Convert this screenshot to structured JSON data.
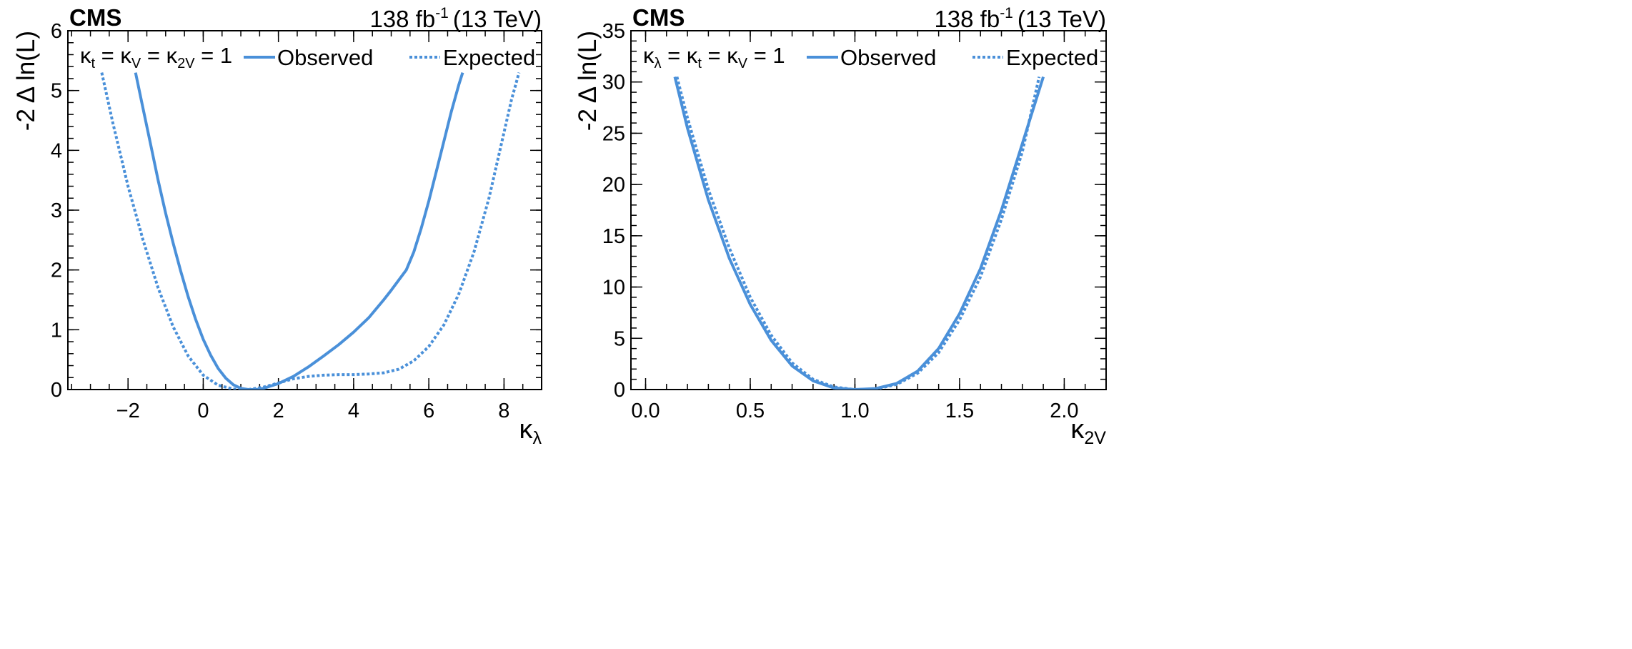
{
  "colors": {
    "line": "#4a90d9",
    "axis": "#000000",
    "background": "#ffffff"
  },
  "chart_data": [
    {
      "type": "line",
      "experiment": "CMS",
      "lumi": {
        "value": "138 fb",
        "exponent": "-1",
        "energy": "(13 TeV)"
      },
      "xlabel": {
        "main": "κ",
        "sub": "λ"
      },
      "ylabel": "-2 Δ ln(L)",
      "xlim": [
        -3.6,
        9.0
      ],
      "ylim": [
        0,
        6
      ],
      "x_ticks": [
        -2,
        0,
        2,
        4,
        6,
        8
      ],
      "x_tick_labels": [
        "−2",
        "0",
        "2",
        "4",
        "6",
        "8"
      ],
      "y_ticks": [
        0,
        1,
        2,
        3,
        4,
        5,
        6
      ],
      "y_tick_labels": [
        "0",
        "1",
        "2",
        "3",
        "4",
        "5",
        "6"
      ],
      "legend": {
        "condition": [
          {
            "t": "κ",
            "s": "t"
          },
          {
            "t": " = κ",
            "s": "V"
          },
          {
            "t": " = κ",
            "s": "2V"
          },
          {
            "t": " = 1",
            "s": ""
          }
        ],
        "observed": "Observed",
        "expected": "Expected",
        "position": "top"
      },
      "series": [
        {
          "name": "Observed",
          "style": "solid",
          "x": [
            -1.8,
            -1.6,
            -1.4,
            -1.2,
            -1.0,
            -0.8,
            -0.6,
            -0.4,
            -0.2,
            0.0,
            0.2,
            0.4,
            0.6,
            0.8,
            1.0,
            1.2,
            1.4,
            1.6,
            1.8,
            2.0,
            2.4,
            2.8,
            3.2,
            3.6,
            4.0,
            4.4,
            4.8,
            5.0,
            5.2,
            5.4,
            5.6,
            5.8,
            6.0,
            6.2,
            6.4,
            6.6,
            6.8,
            6.9
          ],
          "y": [
            5.3,
            4.7,
            4.1,
            3.5,
            2.95,
            2.45,
            1.98,
            1.55,
            1.17,
            0.84,
            0.57,
            0.35,
            0.19,
            0.08,
            0.02,
            0.0,
            0.0,
            0.02,
            0.06,
            0.1,
            0.22,
            0.38,
            0.56,
            0.75,
            0.96,
            1.2,
            1.5,
            1.66,
            1.83,
            2.0,
            2.3,
            2.7,
            3.15,
            3.65,
            4.15,
            4.65,
            5.1,
            5.3
          ]
        },
        {
          "name": "Expected",
          "style": "dotted",
          "x": [
            -2.7,
            -2.4,
            -2.0,
            -1.6,
            -1.2,
            -0.8,
            -0.4,
            0.0,
            0.4,
            0.8,
            1.2,
            1.6,
            2.0,
            2.4,
            2.8,
            3.2,
            3.6,
            4.0,
            4.4,
            4.8,
            5.2,
            5.6,
            6.0,
            6.4,
            6.8,
            7.2,
            7.6,
            8.0,
            8.2,
            8.4
          ],
          "y": [
            5.3,
            4.45,
            3.4,
            2.5,
            1.7,
            1.05,
            0.56,
            0.24,
            0.07,
            0.01,
            0.0,
            0.04,
            0.11,
            0.18,
            0.22,
            0.24,
            0.25,
            0.25,
            0.26,
            0.28,
            0.34,
            0.48,
            0.72,
            1.08,
            1.6,
            2.3,
            3.2,
            4.3,
            4.85,
            5.3
          ]
        }
      ]
    },
    {
      "type": "line",
      "experiment": "CMS",
      "lumi": {
        "value": "138 fb",
        "exponent": "-1",
        "energy": "(13 TeV)"
      },
      "xlabel": {
        "main": "κ",
        "sub": "2V"
      },
      "ylabel": "-2 Δ ln(L)",
      "xlim": [
        -0.07,
        2.2
      ],
      "ylim": [
        0,
        35
      ],
      "x_ticks": [
        0.0,
        0.5,
        1.0,
        1.5,
        2.0
      ],
      "x_tick_labels": [
        "0.0",
        "0.5",
        "1.0",
        "1.5",
        "2.0"
      ],
      "y_ticks": [
        0,
        5,
        10,
        15,
        20,
        25,
        30,
        35
      ],
      "y_tick_labels": [
        "0",
        "5",
        "10",
        "15",
        "20",
        "25",
        "30",
        "35"
      ],
      "legend": {
        "condition": [
          {
            "t": "κ",
            "s": "λ"
          },
          {
            "t": " = κ",
            "s": "t"
          },
          {
            "t": " = κ",
            "s": "V"
          },
          {
            "t": " = 1",
            "s": ""
          }
        ],
        "observed": "Observed",
        "expected": "Expected",
        "position": "top"
      },
      "series": [
        {
          "name": "Observed",
          "style": "solid",
          "x": [
            0.14,
            0.2,
            0.3,
            0.4,
            0.5,
            0.6,
            0.7,
            0.8,
            0.9,
            1.0,
            1.1,
            1.2,
            1.3,
            1.4,
            1.5,
            1.6,
            1.7,
            1.8,
            1.9
          ],
          "y": [
            30.5,
            25.5,
            18.5,
            12.8,
            8.3,
            4.8,
            2.3,
            0.85,
            0.15,
            0.0,
            0.1,
            0.6,
            1.8,
            4.0,
            7.4,
            11.8,
            17.5,
            24.0,
            30.5
          ],
          "min_x": 1.0
        },
        {
          "name": "Expected",
          "style": "dotted",
          "x": [
            0.15,
            0.2,
            0.3,
            0.4,
            0.5,
            0.6,
            0.7,
            0.8,
            0.9,
            1.0,
            1.1,
            1.2,
            1.3,
            1.4,
            1.5,
            1.6,
            1.7,
            1.8,
            1.88
          ],
          "y": [
            30.5,
            26.5,
            19.5,
            13.8,
            9.0,
            5.3,
            2.6,
            1.0,
            0.25,
            0.0,
            0.05,
            0.5,
            1.6,
            3.6,
            6.8,
            11.0,
            16.6,
            23.2,
            30.5
          ],
          "min_x": 1.03
        }
      ]
    }
  ]
}
